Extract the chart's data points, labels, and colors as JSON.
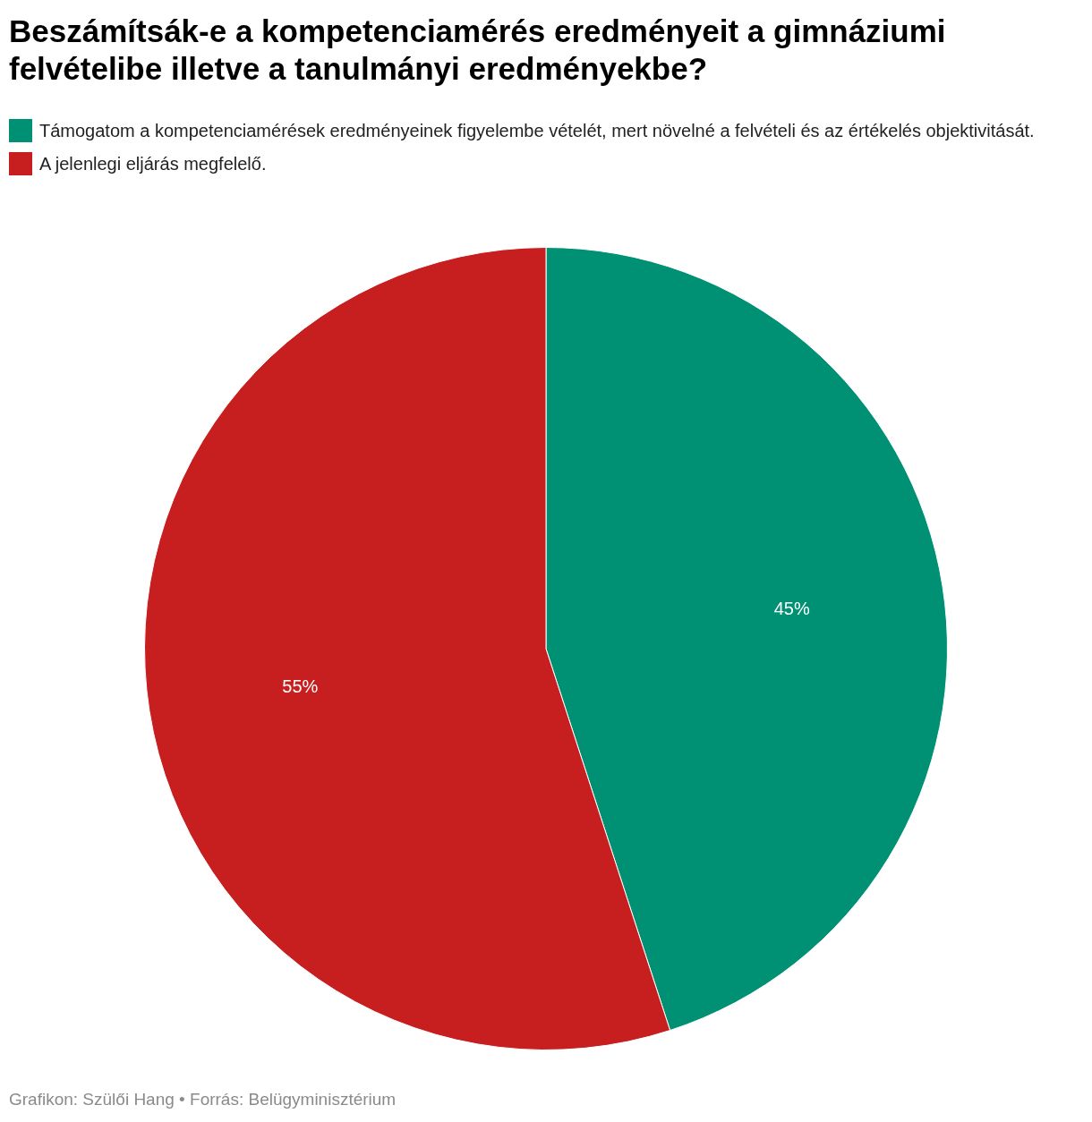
{
  "chart_data": {
    "type": "pie",
    "title": "Beszámítsák-e a kompetenciamérés eredményeit a gimnáziumi felvételibe illetve a tanulmányi eredményekbe?",
    "categories": [
      "Támogatom a kompetenciamérések eredményeinek figyelembe vételét, mert növelné a felvételi és az értékelés objektivitását.",
      "A jelenlegi eljárás megfelelő."
    ],
    "values": [
      45,
      55
    ],
    "colors": [
      "#009175",
      "#c71e1f"
    ],
    "value_labels": [
      "45%",
      "55%"
    ],
    "legend": "top",
    "annotations": [
      "Grafikon: Szülői Hang • Forrás: Belügyminisztérium"
    ]
  }
}
